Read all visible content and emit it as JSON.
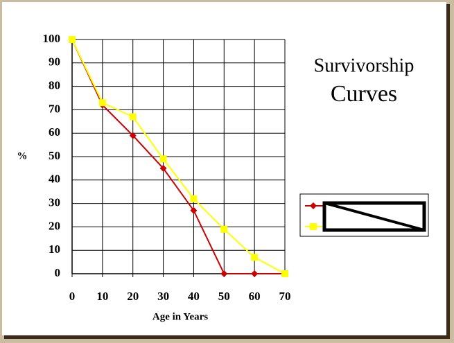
{
  "chart_data": {
    "type": "line",
    "title": "Survivorship",
    "subtitle": "Curves",
    "x_label": "Age in Years",
    "y_label": "%",
    "x": [
      0,
      10,
      20,
      30,
      40,
      50,
      60,
      70
    ],
    "series": [
      {
        "color": "#cc0000",
        "marker": "diamond",
        "values": [
          100,
          72,
          59,
          45,
          27,
          0,
          0,
          0
        ]
      },
      {
        "color": "#ffff00",
        "marker": "square",
        "values": [
          100,
          73,
          67,
          49,
          32,
          19,
          7,
          0
        ]
      }
    ],
    "xlim": [
      0,
      70
    ],
    "xticks": [
      0,
      10,
      20,
      30,
      40,
      50,
      60,
      70
    ],
    "ylim": [
      0,
      100
    ],
    "yticks": [
      0,
      10,
      20,
      30,
      40,
      50,
      60,
      70,
      80,
      90,
      100
    ],
    "grid": true,
    "legend": "right"
  }
}
